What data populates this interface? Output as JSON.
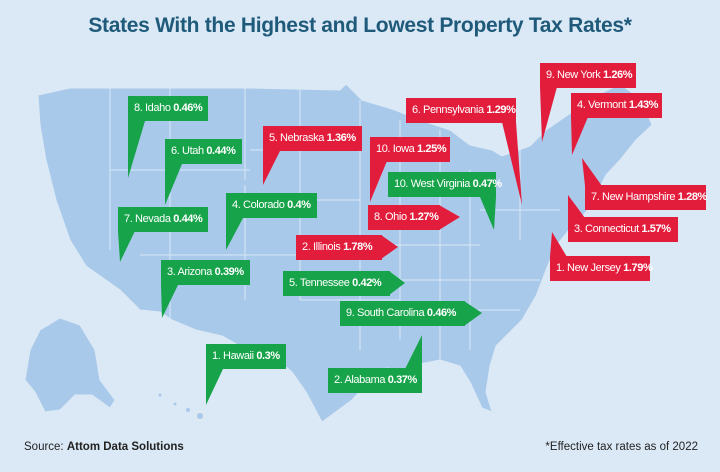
{
  "title": "States With the Highest and Lowest Property Tax Rates*",
  "colors": {
    "lowest": "#17a34a",
    "highest": "#e21d3c",
    "map": "#a9c9ea",
    "background": "#dbe9f6",
    "title": "#1f5a7a"
  },
  "lowest": [
    {
      "rank": "1.",
      "state": "Hawaii",
      "rate": "0.3%"
    },
    {
      "rank": "2.",
      "state": "Alabama",
      "rate": "0.37%"
    },
    {
      "rank": "3.",
      "state": "Arizona",
      "rate": "0.39%"
    },
    {
      "rank": "4.",
      "state": "Colorado",
      "rate": "0.4%"
    },
    {
      "rank": "5.",
      "state": "Tennessee",
      "rate": "0.42%"
    },
    {
      "rank": "6.",
      "state": "Utah",
      "rate": "0.44%"
    },
    {
      "rank": "7.",
      "state": "Nevada",
      "rate": "0.44%"
    },
    {
      "rank": "8.",
      "state": "Idaho",
      "rate": "0.46%"
    },
    {
      "rank": "9.",
      "state": "South Carolina",
      "rate": "0.46%"
    },
    {
      "rank": "10.",
      "state": "West Virginia",
      "rate": "0.47%"
    }
  ],
  "highest": [
    {
      "rank": "1.",
      "state": "New Jersey",
      "rate": "1.79%"
    },
    {
      "rank": "2.",
      "state": "Illinois",
      "rate": "1.78%"
    },
    {
      "rank": "3.",
      "state": "Connecticut",
      "rate": "1.57%"
    },
    {
      "rank": "4.",
      "state": "Vermont",
      "rate": "1.43%"
    },
    {
      "rank": "5.",
      "state": "Nebraska",
      "rate": "1.36%"
    },
    {
      "rank": "6.",
      "state": "Pennsylvania",
      "rate": "1.29%"
    },
    {
      "rank": "7.",
      "state": "New Hampshire",
      "rate": "1.28%"
    },
    {
      "rank": "8.",
      "state": "Ohio",
      "rate": "1.27%"
    },
    {
      "rank": "9.",
      "state": "New York",
      "rate": "1.26%"
    },
    {
      "rank": "10.",
      "state": "Iowa",
      "rate": "1.25%"
    }
  ],
  "source": {
    "label": "Source:",
    "name": "Attom Data Solutions"
  },
  "footnote": "*Effective tax rates as of 2022"
}
